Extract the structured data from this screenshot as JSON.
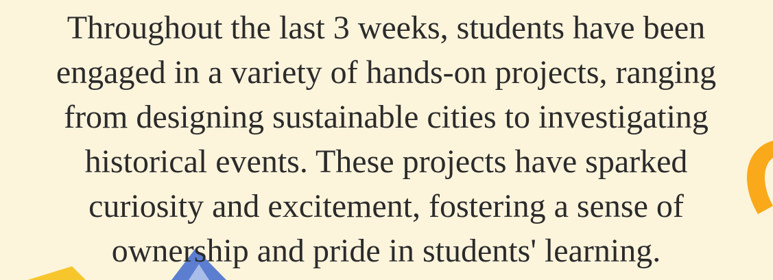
{
  "paragraph": {
    "lines": [
      "Throughout the last 3 weeks, students have been",
      "engaged in a variety of hands-on projects, ranging",
      "from designing sustainable cities to investigating",
      "historical events. These projects have sparked",
      "curiosity and excitement, fostering a sense of",
      "ownership and pride in students' learning."
    ]
  }
}
